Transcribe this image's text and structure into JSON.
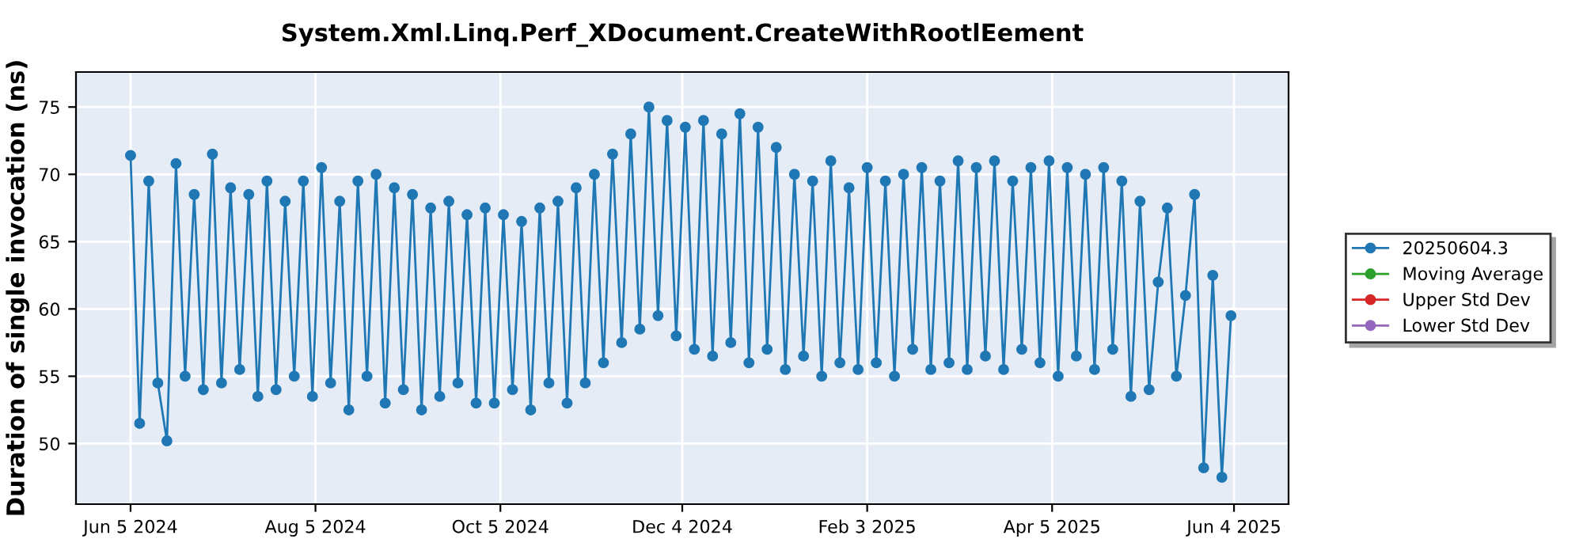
{
  "chart_data": {
    "type": "line",
    "title": "System.Xml.Linq.Perf_XDocument.CreateWithRootlEement",
    "ylabel": "Duration of single invocation (ns)",
    "x": [
      "2024-06-05",
      "2024-06-08",
      "2024-06-11",
      "2024-06-14",
      "2024-06-17",
      "2024-06-20",
      "2024-06-23",
      "2024-06-26",
      "2024-06-29",
      "2024-07-02",
      "2024-07-05",
      "2024-07-08",
      "2024-07-11",
      "2024-07-14",
      "2024-07-17",
      "2024-07-20",
      "2024-07-23",
      "2024-07-26",
      "2024-07-29",
      "2024-08-01",
      "2024-08-04",
      "2024-08-07",
      "2024-08-10",
      "2024-08-13",
      "2024-08-16",
      "2024-08-19",
      "2024-08-22",
      "2024-08-25",
      "2024-08-28",
      "2024-08-31",
      "2024-09-03",
      "2024-09-06",
      "2024-09-09",
      "2024-09-12",
      "2024-09-15",
      "2024-09-18",
      "2024-09-21",
      "2024-09-24",
      "2024-09-27",
      "2024-09-30",
      "2024-10-03",
      "2024-10-06",
      "2024-10-09",
      "2024-10-12",
      "2024-10-15",
      "2024-10-18",
      "2024-10-21",
      "2024-10-24",
      "2024-10-27",
      "2024-10-30",
      "2024-11-02",
      "2024-11-05",
      "2024-11-08",
      "2024-11-11",
      "2024-11-14",
      "2024-11-17",
      "2024-11-20",
      "2024-11-23",
      "2024-11-26",
      "2024-11-29",
      "2024-12-02",
      "2024-12-05",
      "2024-12-08",
      "2024-12-11",
      "2024-12-14",
      "2024-12-17",
      "2024-12-20",
      "2024-12-23",
      "2024-12-26",
      "2024-12-29",
      "2025-01-01",
      "2025-01-04",
      "2025-01-07",
      "2025-01-10",
      "2025-01-13",
      "2025-01-16",
      "2025-01-19",
      "2025-01-22",
      "2025-01-25",
      "2025-01-28",
      "2025-01-31",
      "2025-02-03",
      "2025-02-06",
      "2025-02-09",
      "2025-02-12",
      "2025-02-15",
      "2025-02-18",
      "2025-02-21",
      "2025-02-24",
      "2025-02-27",
      "2025-03-02",
      "2025-03-05",
      "2025-03-08",
      "2025-03-11",
      "2025-03-14",
      "2025-03-17",
      "2025-03-20",
      "2025-03-23",
      "2025-03-26",
      "2025-03-29",
      "2025-04-01",
      "2025-04-04",
      "2025-04-07",
      "2025-04-10",
      "2025-04-13",
      "2025-04-16",
      "2025-04-19",
      "2025-04-22",
      "2025-04-25",
      "2025-04-28",
      "2025-05-01",
      "2025-05-04",
      "2025-05-07",
      "2025-05-10",
      "2025-05-13",
      "2025-05-16",
      "2025-05-19",
      "2025-05-22",
      "2025-05-25",
      "2025-05-28",
      "2025-05-31",
      "2025-06-03"
    ],
    "series": [
      {
        "name": "20250604.3",
        "color": "#1f77b4",
        "values": [
          71.4,
          51.5,
          69.5,
          54.5,
          50.2,
          70.8,
          55.0,
          68.5,
          54.0,
          71.5,
          54.5,
          69.0,
          55.5,
          68.5,
          53.5,
          69.5,
          54.0,
          68.0,
          55.0,
          69.5,
          53.5,
          70.5,
          54.5,
          68.0,
          52.5,
          69.5,
          55.0,
          70.0,
          53.0,
          69.0,
          54.0,
          68.5,
          52.5,
          67.5,
          53.5,
          68.0,
          54.5,
          67.0,
          53.0,
          67.5,
          53.0,
          67.0,
          54.0,
          66.5,
          52.5,
          67.5,
          54.5,
          68.0,
          53.0,
          69.0,
          54.5,
          70.0,
          56.0,
          71.5,
          57.5,
          73.0,
          58.5,
          75.0,
          59.5,
          74.0,
          58.0,
          73.5,
          57.0,
          74.0,
          56.5,
          73.0,
          57.5,
          74.5,
          56.0,
          73.5,
          57.0,
          72.0,
          55.5,
          70.0,
          56.5,
          69.5,
          55.0,
          71.0,
          56.0,
          69.0,
          55.5,
          70.5,
          56.0,
          69.5,
          55.0,
          70.0,
          57.0,
          70.5,
          55.5,
          69.5,
          56.0,
          71.0,
          55.5,
          70.5,
          56.5,
          71.0,
          55.5,
          69.5,
          57.0,
          70.5,
          56.0,
          71.0,
          55.0,
          70.5,
          56.5,
          70.0,
          55.5,
          70.5,
          57.0,
          69.5,
          53.5,
          68.0,
          54.0,
          62.0,
          67.5,
          55.0,
          61.0,
          68.5,
          48.2,
          62.5,
          47.5,
          59.5
        ]
      },
      {
        "name": "Moving Average",
        "color": "#2ca02c",
        "values": [
          null,
          null,
          null,
          null,
          null,
          null,
          null,
          null,
          null,
          null,
          null,
          null,
          null,
          null,
          null,
          null,
          null,
          null,
          null,
          null,
          null,
          null,
          null,
          null,
          null,
          null,
          null,
          null,
          null,
          null,
          null,
          null,
          null,
          null,
          null,
          null,
          null,
          null,
          null,
          null,
          null,
          null,
          null,
          null,
          null,
          null,
          null,
          null,
          null,
          null,
          null,
          null,
          null,
          null,
          null,
          null,
          null,
          null,
          null,
          null,
          null,
          null,
          null,
          null,
          null,
          null,
          null,
          null,
          null,
          null,
          null,
          null,
          null,
          null,
          null,
          null,
          null,
          null,
          null,
          null,
          null,
          null,
          null,
          null,
          null,
          null,
          null,
          null,
          null,
          null,
          null,
          null,
          null,
          null,
          null,
          null,
          null,
          null,
          null,
          null,
          null,
          null,
          null,
          null,
          null,
          null,
          null,
          null,
          null,
          null,
          null,
          null,
          null,
          null,
          null,
          null,
          null,
          null,
          null,
          null,
          null,
          null
        ]
      },
      {
        "name": "Upper Std Dev",
        "color": "#d62728",
        "values": [
          null,
          null,
          null,
          null,
          null,
          null,
          null,
          null,
          null,
          null,
          null,
          null,
          null,
          null,
          null,
          null,
          null,
          null,
          null,
          null,
          null,
          null,
          null,
          null,
          null,
          null,
          null,
          null,
          null,
          null,
          null,
          null,
          null,
          null,
          null,
          null,
          null,
          null,
          null,
          null,
          null,
          null,
          null,
          null,
          null,
          null,
          null,
          null,
          null,
          null,
          null,
          null,
          null,
          null,
          null,
          null,
          null,
          null,
          null,
          null,
          null,
          null,
          null,
          null,
          null,
          null,
          null,
          null,
          null,
          null,
          null,
          null,
          null,
          null,
          null,
          null,
          null,
          null,
          null,
          null,
          null,
          null,
          null,
          null,
          null,
          null,
          null,
          null,
          null,
          null,
          null,
          null,
          null,
          null,
          null,
          null,
          null,
          null,
          null,
          null,
          null,
          null,
          null,
          null,
          null,
          null,
          null,
          null,
          null,
          null,
          null,
          null,
          null,
          null,
          null,
          null,
          null,
          null,
          null,
          null,
          null,
          null
        ]
      },
      {
        "name": "Lower Std Dev",
        "color": "#9467bd",
        "values": [
          null,
          null,
          null,
          null,
          null,
          null,
          null,
          null,
          null,
          null,
          null,
          null,
          null,
          null,
          null,
          null,
          null,
          null,
          null,
          null,
          null,
          null,
          null,
          null,
          null,
          null,
          null,
          null,
          null,
          null,
          null,
          null,
          null,
          null,
          null,
          null,
          null,
          null,
          null,
          null,
          null,
          null,
          null,
          null,
          null,
          null,
          null,
          null,
          null,
          null,
          null,
          null,
          null,
          null,
          null,
          null,
          null,
          null,
          null,
          null,
          null,
          null,
          null,
          null,
          null,
          null,
          null,
          null,
          null,
          null,
          null,
          null,
          null,
          null,
          null,
          null,
          null,
          null,
          null,
          null,
          null,
          null,
          null,
          null,
          null,
          null,
          null,
          null,
          null,
          null,
          null,
          null,
          null,
          null,
          null,
          null,
          null,
          null,
          null,
          null,
          null,
          null,
          null,
          null,
          null,
          null,
          null,
          null,
          null,
          null,
          null,
          null,
          null,
          null,
          null,
          null,
          null,
          null,
          null,
          null,
          null,
          null
        ]
      }
    ],
    "xlim": [
      "2024-05-18",
      "2025-06-22"
    ],
    "xticks": [
      {
        "value": "2024-06-05",
        "label": "Jun 5 2024"
      },
      {
        "value": "2024-08-05",
        "label": "Aug 5 2024"
      },
      {
        "value": "2024-10-05",
        "label": "Oct 5 2024"
      },
      {
        "value": "2024-12-04",
        "label": "Dec 4 2024"
      },
      {
        "value": "2025-02-03",
        "label": "Feb 3 2025"
      },
      {
        "value": "2025-04-05",
        "label": "Apr 5 2025"
      },
      {
        "value": "2025-06-04",
        "label": "Jun 4 2025"
      }
    ],
    "ylim": [
      45.5,
      77.6
    ],
    "yticks": [
      50,
      55,
      60,
      65,
      70,
      75
    ],
    "grid": true,
    "legend": "right",
    "marker": "circle",
    "line_style": "solid"
  }
}
